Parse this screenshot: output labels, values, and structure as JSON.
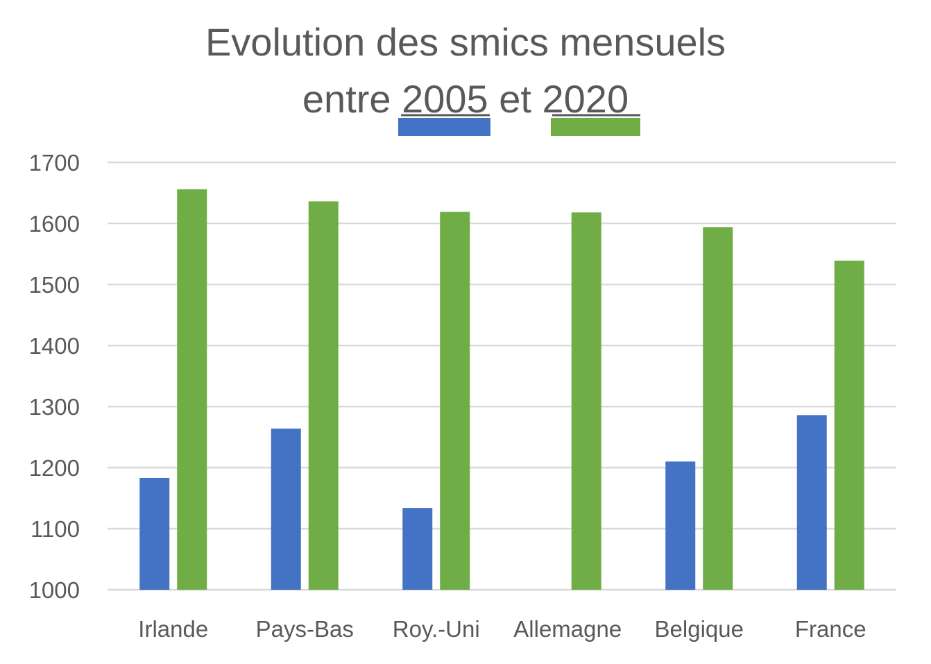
{
  "chart_data": {
    "type": "bar",
    "title_line1": "Evolution des smics mensuels",
    "title_line2_prefix": "entre",
    "title_line2_middle": "et",
    "categories": [
      "Irlande",
      "Pays-Bas",
      "Roy.-Uni",
      "Allemagne",
      "Belgique",
      "France"
    ],
    "series": [
      {
        "name": "2005",
        "color": "#4472c4",
        "values": [
          1183,
          1264,
          1134,
          null,
          1210,
          1286
        ]
      },
      {
        "name": "2020",
        "color": "#70ad47",
        "values": [
          1656,
          1636,
          1619,
          1618,
          1594,
          1539
        ]
      }
    ],
    "ylim": [
      1000,
      1700
    ],
    "yticks": [
      1000,
      1100,
      1200,
      1300,
      1400,
      1500,
      1600,
      1700
    ],
    "xlabel": "",
    "ylabel": "",
    "grid": true,
    "legend": "in-title"
  }
}
